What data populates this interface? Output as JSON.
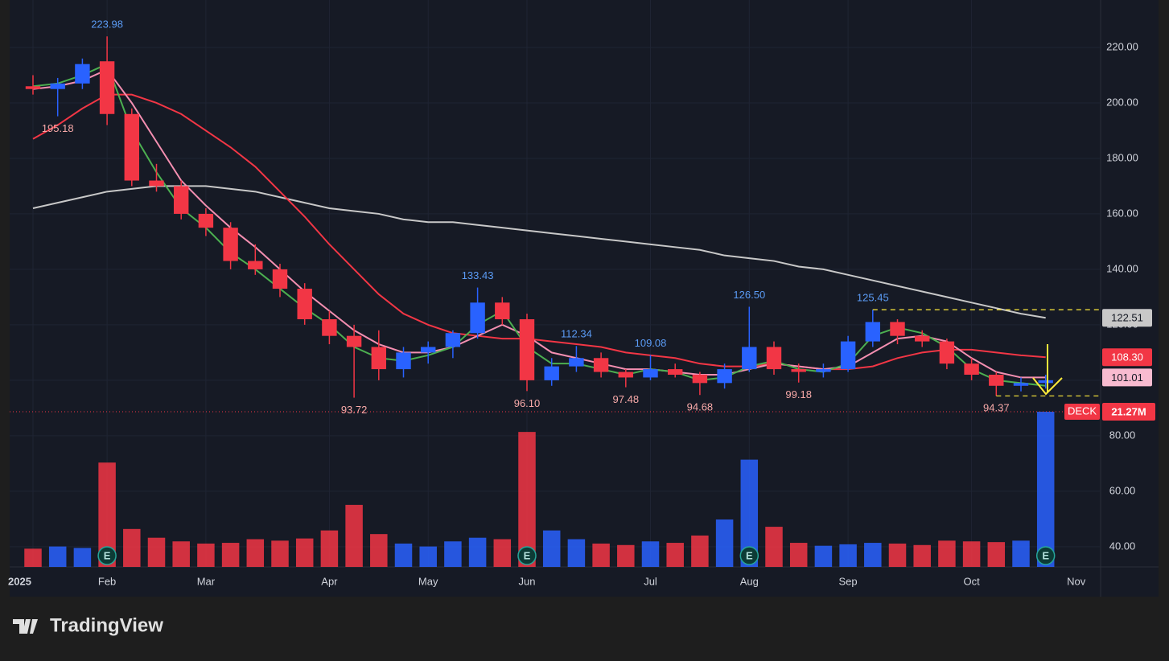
{
  "chart_data": {
    "type": "candlestick",
    "symbol": "DECK",
    "categories": [
      "2025",
      null,
      null,
      "Feb",
      null,
      null,
      null,
      "Mar",
      null,
      null,
      null,
      null,
      "Apr",
      null,
      null,
      null,
      "May",
      null,
      null,
      null,
      "Jun",
      null,
      null,
      null,
      null,
      "Jul",
      null,
      null,
      null,
      "Aug",
      null,
      null,
      null,
      "Sep",
      null,
      null,
      null,
      null,
      "Oct",
      null,
      null,
      null
    ],
    "open": [
      206,
      205,
      207,
      215,
      196,
      172,
      170,
      160,
      155,
      143,
      140,
      133,
      122,
      116,
      112,
      104,
      110,
      112,
      117,
      128,
      122,
      100,
      105,
      108,
      103,
      101,
      104,
      102,
      99,
      104,
      112,
      104,
      103,
      104,
      114,
      121,
      116,
      114,
      106,
      102,
      98,
      99
    ],
    "high": [
      210,
      209,
      216,
      223.98,
      198,
      178,
      172,
      162,
      157,
      149,
      142,
      135,
      125,
      120,
      118,
      112,
      114,
      118,
      133.43,
      130,
      124,
      108,
      112.34,
      110,
      104,
      109.08,
      106,
      103,
      106,
      126.5,
      114,
      106,
      106,
      116,
      125.45,
      122,
      118,
      115,
      108,
      103,
      101,
      102
    ],
    "low": [
      203,
      195.18,
      205,
      192,
      170,
      168,
      158,
      152,
      140,
      138,
      130,
      120,
      113,
      93.72,
      100,
      101,
      106,
      108,
      115,
      120,
      96.1,
      98,
      103,
      101,
      97.48,
      100,
      101,
      94.68,
      97,
      103,
      102,
      99.18,
      101,
      103,
      112,
      113,
      112,
      104,
      100,
      94.37,
      96,
      97
    ],
    "close": [
      205,
      207,
      214,
      196,
      172,
      170,
      160,
      155,
      143,
      140,
      133,
      122,
      116,
      112,
      104,
      110,
      112,
      117,
      128,
      122,
      100,
      105,
      108,
      103,
      101,
      104,
      102,
      99,
      104,
      112,
      104,
      103,
      104,
      114,
      121,
      116,
      114,
      106,
      102,
      98,
      99,
      100
    ],
    "volume": [
      2.5,
      2.8,
      2.6,
      14.3,
      5.2,
      4.0,
      3.5,
      3.2,
      3.3,
      3.8,
      3.6,
      3.9,
      5.0,
      8.5,
      4.5,
      3.2,
      2.8,
      3.5,
      4.0,
      3.8,
      18.5,
      5.0,
      3.8,
      3.2,
      3.0,
      3.5,
      3.3,
      4.3,
      6.5,
      14.7,
      5.5,
      3.3,
      2.9,
      3.1,
      3.3,
      3.2,
      3.0,
      3.6,
      3.5,
      3.4,
      3.6,
      21.27
    ],
    "volume_last_label": "21.27M",
    "volume_lim": [
      0,
      77.7
    ],
    "up_color": "#2962ff",
    "down_color": "#f23645",
    "moving_averages": [
      {
        "color": "#c8c8c8",
        "values": [
          162,
          164,
          166,
          168,
          169,
          170,
          170,
          170,
          169,
          168,
          166,
          164,
          162,
          161,
          160,
          158,
          157,
          157,
          156,
          155,
          154,
          153,
          152,
          151,
          150,
          149,
          148,
          147,
          145,
          144,
          143,
          141,
          140,
          138,
          136,
          134,
          132,
          130,
          128,
          126,
          124,
          122.51
        ]
      },
      {
        "color": "#f23645",
        "values": [
          187,
          192,
          198,
          203,
          203,
          200,
          196,
          190,
          184,
          177,
          168,
          159,
          149,
          140,
          131,
          124,
          120,
          117,
          116,
          115,
          115,
          114,
          113,
          112,
          110,
          109,
          108,
          106,
          105,
          105,
          106,
          105,
          104,
          104,
          105,
          108,
          110,
          111,
          111,
          110,
          109,
          108.3
        ]
      },
      {
        "color": "#f48fb1",
        "values": [
          205,
          206,
          208,
          212,
          200,
          186,
          172,
          163,
          155,
          148,
          140,
          132,
          125,
          118,
          113,
          110,
          110,
          112,
          116,
          120,
          116,
          110,
          108,
          106,
          104,
          104,
          103,
          102,
          102,
          104,
          106,
          105,
          104,
          105,
          110,
          115,
          116,
          114,
          108,
          103,
          101,
          101.01
        ]
      },
      {
        "color": "#4caf50",
        "values": [
          206,
          207,
          210,
          214,
          190,
          175,
          162,
          155,
          146,
          140,
          133,
          126,
          120,
          112,
          108,
          107,
          109,
          112,
          120,
          125,
          112,
          106,
          106,
          104,
          102,
          104,
          103,
          100,
          101,
          105,
          107,
          104,
          103,
          106,
          116,
          119,
          117,
          112,
          104,
          100,
          99,
          98
        ]
      }
    ],
    "ylim": [
      32.7,
      237.1
    ],
    "yticks": [
      {
        "value": 40,
        "label": "40.00"
      },
      {
        "value": 60,
        "label": "60.00"
      },
      {
        "value": 80,
        "label": "80.00"
      },
      {
        "value": 100,
        "label": "100.00"
      },
      {
        "value": 120,
        "label": "120.00"
      },
      {
        "value": 140,
        "label": "140.00"
      },
      {
        "value": 160,
        "label": "160.00"
      },
      {
        "value": 180,
        "label": "180.00"
      },
      {
        "value": 200,
        "label": "200.00"
      },
      {
        "value": 220,
        "label": "220.00"
      }
    ],
    "extra_month": "Nov",
    "annotations": [
      {
        "value": 223.98,
        "label": "223.98"
      },
      {
        "value": 195.18,
        "label": "195.18"
      },
      {
        "value": 93.72,
        "label": "93.72"
      },
      {
        "value": 133.43,
        "label": "133.43"
      },
      {
        "value": 96.1,
        "label": "96.10"
      },
      {
        "value": 112.34,
        "label": "112.34"
      },
      {
        "value": 97.48,
        "label": "97.48"
      },
      {
        "value": 109.08,
        "label": "109.08"
      },
      {
        "value": 94.68,
        "label": "94.68"
      },
      {
        "value": 126.5,
        "label": "126.50"
      },
      {
        "value": 99.18,
        "label": "99.18"
      },
      {
        "value": 125.45,
        "label": "125.45"
      },
      {
        "value": 94.37,
        "label": "94.37"
      }
    ],
    "price_labels": [
      {
        "value": 122.51,
        "label": "122.51",
        "color": "#c8c8c8"
      },
      {
        "value": 108.3,
        "label": "108.30",
        "color": "#f23645"
      },
      {
        "value": 101.01,
        "label": "101.01",
        "color": "#f8bbd0"
      }
    ],
    "levels": [
      125.45,
      94.37
    ],
    "earnings_markers": [
      "E",
      "E",
      "E",
      "E"
    ],
    "brand": "TradingView"
  }
}
